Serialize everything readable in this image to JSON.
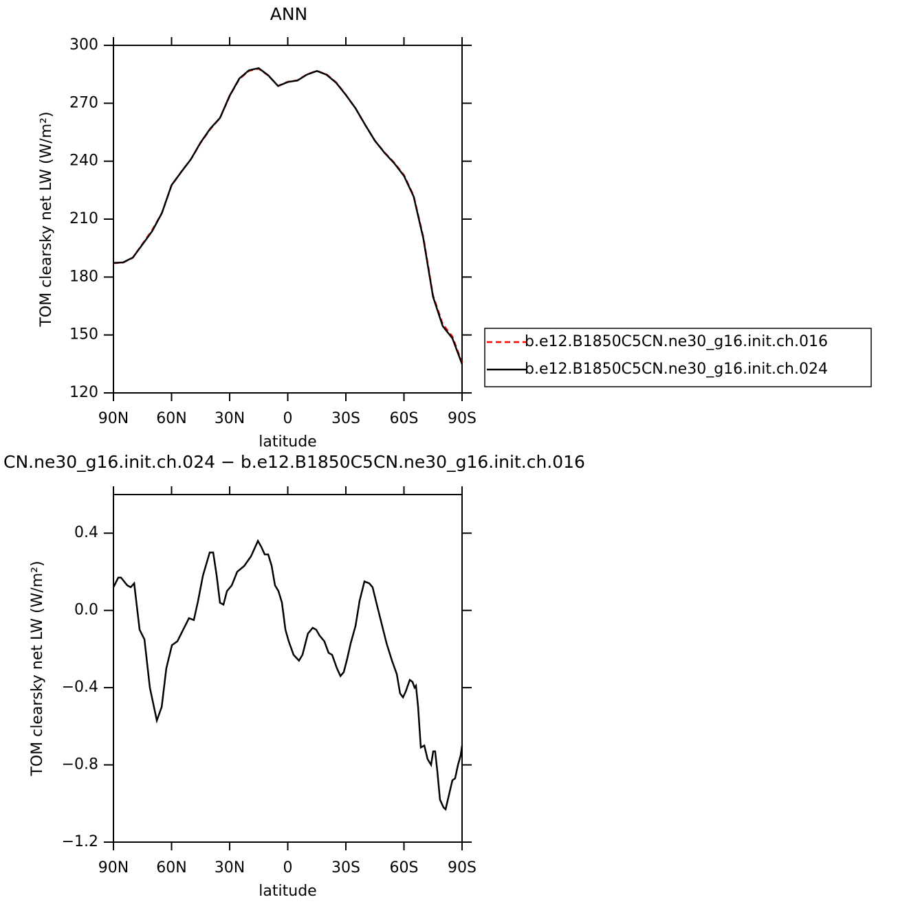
{
  "chart_data": [
    {
      "type": "line",
      "title": "ANN",
      "x_label": "latitude",
      "y_label": "TOM clearsky net LW (W/m²)",
      "x": [
        90,
        85,
        80,
        75,
        70,
        65,
        60,
        55,
        50,
        45,
        40,
        35,
        30,
        25,
        20,
        15,
        10,
        5,
        0,
        -5,
        -10,
        -15,
        -20,
        -25,
        -30,
        -35,
        -40,
        -45,
        -50,
        -55,
        -60,
        -65,
        -70,
        -75,
        -80,
        -85,
        -90
      ],
      "xlim": [
        90,
        -90
      ],
      "xticks": [
        {
          "value": 90,
          "label": "90N"
        },
        {
          "value": 60,
          "label": "60N"
        },
        {
          "value": 30,
          "label": "30N"
        },
        0,
        {
          "value": -30,
          "label": "30S"
        },
        {
          "value": -60,
          "label": "60S"
        },
        {
          "value": -90,
          "label": "90S"
        }
      ],
      "ylim": [
        120,
        300
      ],
      "yticks": [
        120,
        150,
        180,
        210,
        240,
        270,
        300
      ],
      "legend": "right",
      "series": [
        {
          "name": "b.e12.B1850C5CN.ne30_g16.init.ch.016",
          "color": "#ff0000",
          "style": "dashed",
          "values": [
            187.2,
            187.5,
            190,
            197.2,
            204.3,
            213.2,
            227.4,
            234.5,
            241,
            249.5,
            256.6,
            262.3,
            273.7,
            282.6,
            286.8,
            287.9,
            284.3,
            279,
            281.1,
            281.9,
            285,
            286.8,
            285,
            280.8,
            274.4,
            267.3,
            258.7,
            250.6,
            244.5,
            239.2,
            232.8,
            222.1,
            200.7,
            170.5,
            155.6,
            149.2,
            135.6
          ]
        },
        {
          "name": "b.e12.B1850C5CN.ne30_g16.init.ch.024",
          "color": "#000000",
          "style": "solid",
          "values": [
            187.3,
            187.6,
            190.1,
            196.9,
            203.8,
            213.1,
            227.6,
            234.4,
            241,
            249.7,
            256.9,
            262.4,
            273.9,
            282.8,
            287.1,
            288.2,
            284.4,
            278.9,
            281,
            281.8,
            284.9,
            286.7,
            284.8,
            280.6,
            274.3,
            267.4,
            258.8,
            250.6,
            244.3,
            238.9,
            232.4,
            221.7,
            200,
            169.8,
            154.6,
            148.3,
            134.9
          ]
        }
      ]
    },
    {
      "type": "line",
      "title": "CN.ne30_g16.init.ch.024 − b.e12.B1850C5CN.ne30_g16.init.ch.016",
      "x_label": "latitude",
      "y_label": "TOM clearsky net LW (W/m²)",
      "x": [
        90,
        87.5,
        86.1,
        82.9,
        81.1,
        79.3,
        76.5,
        74.0,
        71.2,
        67.6,
        65.1,
        62.7,
        59.8,
        57.0,
        54.5,
        51.0,
        48.5,
        46.3,
        43.8,
        40.3,
        38.5,
        36.7,
        35.0,
        33.2,
        31.4,
        28.9,
        26.1,
        22.5,
        19.0,
        15.4,
        13.7,
        11.9,
        10.1,
        8.3,
        6.6,
        4.8,
        3.0,
        1.2,
        -0.5,
        -3.0,
        -5.8,
        -7.6,
        -10.4,
        -12.9,
        -14.7,
        -16.4,
        -18.9,
        -21.1,
        -22.9,
        -25.4,
        -27.2,
        -28.9,
        -30.7,
        -32.5,
        -35.0,
        -37.1,
        -39.6,
        -42.1,
        -43.8,
        -46.0,
        -48.5,
        -51.0,
        -53.8,
        -56.3,
        -58.0,
        -59.5,
        -60.9,
        -63.0,
        -64.4,
        -65.5,
        -66.2,
        -67.3,
        -68.7,
        -70.5,
        -72.2,
        -74.0,
        -75.1,
        -76.1,
        -77.2,
        -78.6,
        -80.4,
        -81.5,
        -82.9,
        -85.0,
        -86.4,
        -87.9,
        -89.3,
        -90
      ],
      "xlim": [
        90,
        -90
      ],
      "xticks": [
        {
          "value": 90,
          "label": "90N"
        },
        {
          "value": 60,
          "label": "60N"
        },
        {
          "value": 30,
          "label": "30N"
        },
        0,
        {
          "value": -30,
          "label": "30S"
        },
        {
          "value": -60,
          "label": "60S"
        },
        {
          "value": -90,
          "label": "90S"
        }
      ],
      "ylim": [
        -1.2,
        0.6
      ],
      "yticks": [
        {
          "value": -1.2,
          "label": "−1.2"
        },
        {
          "value": -0.8,
          "label": "−0.8"
        },
        {
          "value": -0.4,
          "label": "−0.4"
        },
        {
          "value": 0,
          "label": "0.0"
        },
        0.4
      ],
      "series": [
        {
          "color": "#000000",
          "style": "solid",
          "values": [
            0.12,
            0.17,
            0.17,
            0.13,
            0.12,
            0.14,
            -0.1,
            -0.15,
            -0.4,
            -0.57,
            -0.5,
            -0.3,
            -0.18,
            -0.16,
            -0.11,
            -0.04,
            -0.05,
            0.05,
            0.18,
            0.3,
            0.3,
            0.18,
            0.04,
            0.03,
            0.1,
            0.13,
            0.2,
            0.23,
            0.28,
            0.36,
            0.33,
            0.29,
            0.29,
            0.23,
            0.13,
            0.1,
            0.04,
            -0.1,
            -0.16,
            -0.23,
            -0.26,
            -0.23,
            -0.12,
            -0.09,
            -0.1,
            -0.13,
            -0.16,
            -0.22,
            -0.23,
            -0.3,
            -0.34,
            -0.32,
            -0.25,
            -0.17,
            -0.08,
            0.05,
            0.15,
            0.14,
            0.12,
            0.03,
            -0.07,
            -0.17,
            -0.26,
            -0.33,
            -0.43,
            -0.45,
            -0.42,
            -0.36,
            -0.37,
            -0.4,
            -0.39,
            -0.5,
            -0.71,
            -0.7,
            -0.77,
            -0.8,
            -0.73,
            -0.73,
            -0.83,
            -0.98,
            -1.02,
            -1.03,
            -0.97,
            -0.88,
            -0.87,
            -0.8,
            -0.75,
            -0.7
          ]
        }
      ]
    }
  ]
}
